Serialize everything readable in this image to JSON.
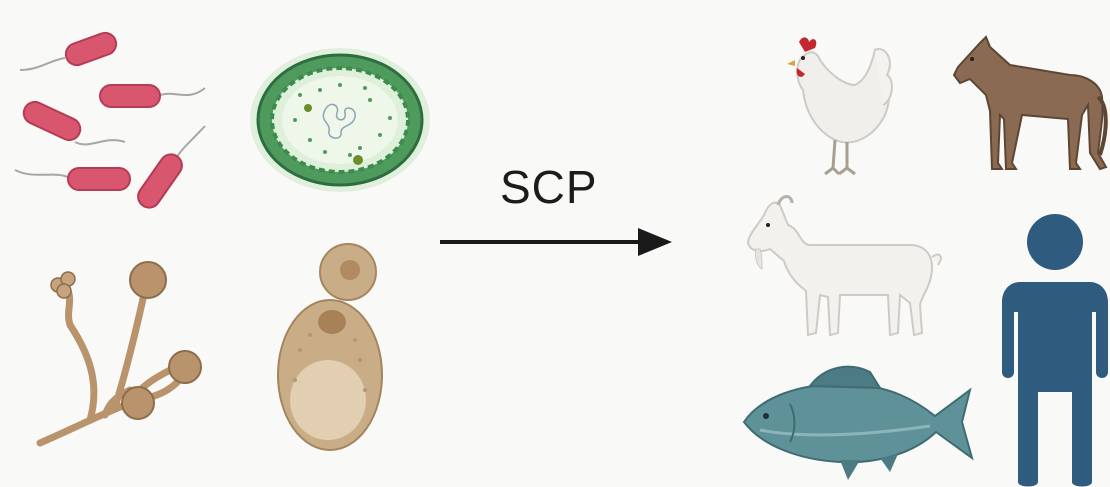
{
  "diagram": {
    "arrow_label": "SCP",
    "sources": [
      {
        "name": "bacteria",
        "icon": "bacteria-icon"
      },
      {
        "name": "algae",
        "icon": "algae-cell-icon"
      },
      {
        "name": "fungi",
        "icon": "mold-fungus-icon"
      },
      {
        "name": "yeast",
        "icon": "yeast-cell-icon"
      }
    ],
    "consumers": [
      {
        "name": "chicken",
        "icon": "chicken-icon"
      },
      {
        "name": "horse",
        "icon": "horse-icon"
      },
      {
        "name": "goat",
        "icon": "goat-icon"
      },
      {
        "name": "human",
        "icon": "human-icon"
      },
      {
        "name": "fish",
        "icon": "fish-icon"
      }
    ],
    "colors": {
      "bacteria": "#d8566e",
      "algae": "#4f9b5e",
      "fungi": "#b8936b",
      "yeast": "#c9ad86",
      "arrow": "#1a1a1a",
      "human": "#2f5c7e",
      "fish": "#5f9198",
      "horse": "#8a6a52"
    }
  }
}
